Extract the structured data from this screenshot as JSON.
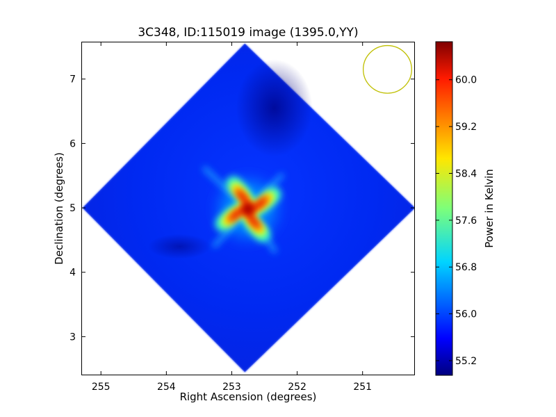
{
  "chart_data": {
    "type": "heatmap",
    "title": "3C348, ID:115019 image (1395.0,YY)",
    "xlabel": "Right Ascension (degrees)",
    "ylabel": "Declination (degrees)",
    "xlim": [
      255.3,
      250.2
    ],
    "ylim": [
      2.4,
      7.58
    ],
    "x_ticks": [
      255,
      254,
      253,
      252,
      251
    ],
    "x_tick_labels": [
      "255",
      "254",
      "253",
      "252",
      "251"
    ],
    "y_ticks": [
      3,
      4,
      5,
      6,
      7
    ],
    "y_tick_labels": [
      "3",
      "4",
      "5",
      "6",
      "7"
    ],
    "colorbar": {
      "label": "Power in Kelvin",
      "colormap": "jet",
      "range": [
        54.95,
        60.65
      ],
      "ticks": [
        55.2,
        56.0,
        56.8,
        57.6,
        58.4,
        59.2,
        60.0
      ],
      "tick_labels": [
        "55.2",
        "56.0",
        "56.8",
        "57.6",
        "58.4",
        "59.2",
        "60.0"
      ]
    },
    "image": {
      "footprint": "diamond",
      "footprint_center": [
        252.8,
        5.0
      ],
      "footprint_corners": [
        [
          252.8,
          7.55
        ],
        [
          250.2,
          5.0
        ],
        [
          252.8,
          2.45
        ],
        [
          255.28,
          5.0
        ]
      ],
      "background_level": 55.9,
      "minimum_level": 55.1,
      "peak_level": 60.5,
      "peak_position": [
        252.75,
        4.98
      ]
    },
    "beam": {
      "center": [
        250.62,
        7.15
      ],
      "radius_deg": 0.37,
      "color": "#bfbf00"
    }
  }
}
